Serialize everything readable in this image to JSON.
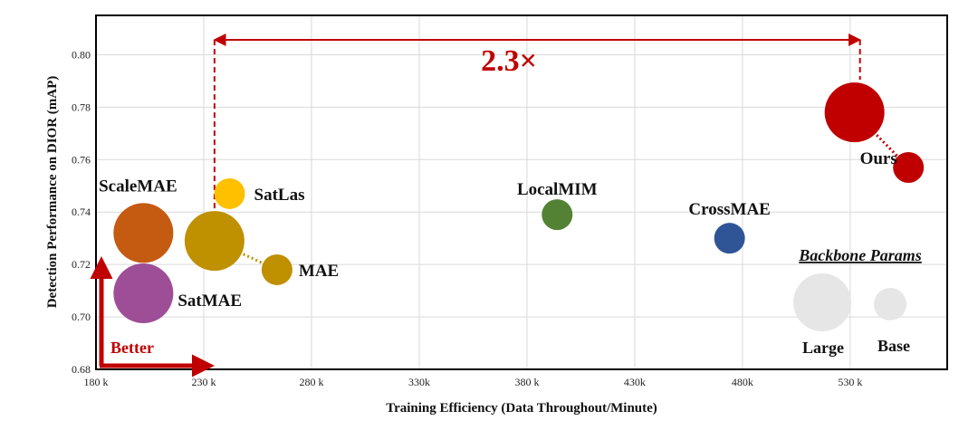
{
  "chart_data": {
    "type": "scatter",
    "title": "",
    "xlabel": "Training Efficiency (Data Throughout/Minute)",
    "ylabel": "Detection Performance on DIOR (mAP)",
    "xlim": [
      180,
      575
    ],
    "ylim": [
      0.68,
      0.815
    ],
    "x_ticks": [
      180,
      230,
      280,
      330,
      380,
      430,
      480,
      530
    ],
    "x_tick_labels": [
      "180 k",
      "230 k",
      "280 k",
      "330k",
      "380 k",
      "430k",
      "480k",
      "530 k"
    ],
    "y_ticks": [
      0.68,
      0.7,
      0.72,
      0.74,
      0.76,
      0.78,
      0.8
    ],
    "y_tick_labels": [
      "0.68",
      "0.70",
      "0.72",
      "0.74",
      "0.76",
      "0.78",
      "0.80"
    ],
    "grid": true,
    "points": [
      {
        "name": "ScaleMAE",
        "x": 202,
        "y": 0.732,
        "size": "large",
        "color": "#c55a11"
      },
      {
        "name": "SatMAE",
        "x": 202,
        "y": 0.709,
        "size": "large",
        "color": "#9e4e96"
      },
      {
        "name": "SatLas",
        "x": 242,
        "y": 0.747,
        "size": "base",
        "color": "#ffc000"
      },
      {
        "name": "MAE (Large)",
        "x": 235,
        "y": 0.729,
        "size": "large",
        "color": "#bf9000"
      },
      {
        "name": "MAE",
        "x": 264,
        "y": 0.718,
        "size": "base",
        "color": "#bf9000"
      },
      {
        "name": "LocalMIM",
        "x": 394,
        "y": 0.739,
        "size": "base",
        "color": "#548235"
      },
      {
        "name": "CrossMAE",
        "x": 474,
        "y": 0.73,
        "size": "base",
        "color": "#2f5597"
      },
      {
        "name": "Ours (Large)",
        "x": 532,
        "y": 0.778,
        "size": "large",
        "color": "#c00000"
      },
      {
        "name": "Ours",
        "x": 557,
        "y": 0.757,
        "size": "base",
        "color": "#c00000"
      }
    ],
    "point_labels": {
      "ScaleMAE": "ScaleMAE",
      "SatMAE": "SatMAE",
      "SatLas": "SatLas",
      "MAE": "MAE",
      "LocalMIM": "LocalMIM",
      "CrossMAE": "CrossMAE",
      "Ours": "Ours"
    },
    "annotations": {
      "speedup": "2.3×",
      "better": "Better"
    },
    "legend": {
      "title": "Backbone Params",
      "placement": "bottom-right",
      "items": [
        {
          "label": "Large",
          "size": "large",
          "color": "#e6e6e6"
        },
        {
          "label": "Base",
          "size": "base",
          "color": "#e6e6e6"
        }
      ]
    },
    "colors": {
      "accent": "#c00000",
      "grid": "#d9d9d9"
    }
  }
}
